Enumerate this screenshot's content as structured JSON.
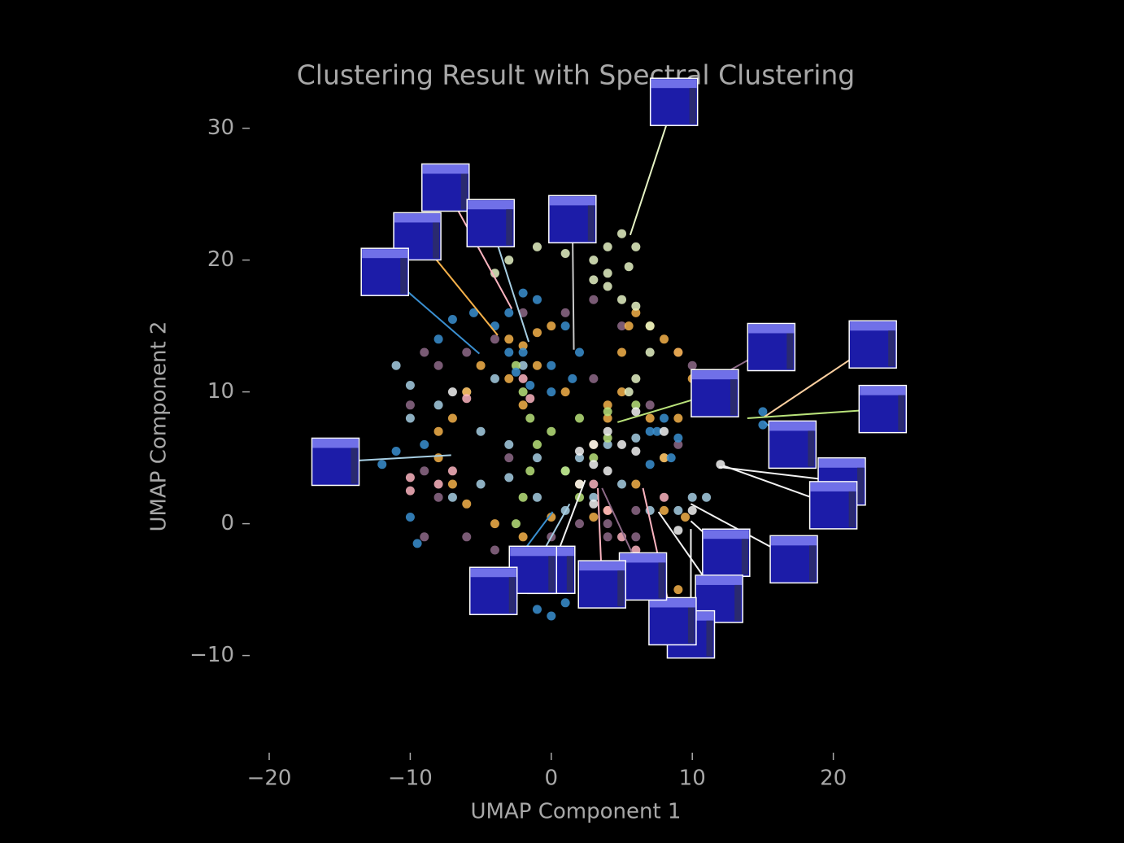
{
  "chart_data": {
    "type": "scatter",
    "title": "Clustering Result with Spectral Clustering",
    "xlabel": "UMAP Component 1",
    "ylabel": "UMAP Component 2",
    "xlim": [
      -21.5,
      28.5
    ],
    "ylim": [
      -17,
      33
    ],
    "xticks": [
      {
        "value": -20,
        "label": "−20"
      },
      {
        "value": -10,
        "label": "−10"
      },
      0,
      10,
      20
    ],
    "yticks": [
      {
        "value": -10,
        "label": "−10"
      },
      0,
      10,
      20,
      30
    ],
    "series": [
      {
        "color": "#8e6a88",
        "x": [
          -9,
          -8,
          -6,
          -4,
          -2,
          1,
          3,
          5,
          9,
          10,
          -9,
          -8,
          -6,
          -4,
          -2,
          0,
          2,
          4,
          6,
          -10,
          4,
          6,
          7,
          9,
          -9,
          3,
          -3
        ],
        "y": [
          13,
          12,
          13,
          14,
          16,
          16,
          17,
          15,
          13,
          12,
          4,
          2,
          -1,
          -2,
          -2,
          -1,
          0,
          0,
          1,
          9,
          -1,
          -1,
          9,
          6,
          -1,
          11,
          5
        ]
      },
      {
        "color": "#a6cee3",
        "x": [
          -10,
          -8,
          -6,
          -4,
          -2,
          -5,
          -3,
          -1,
          1,
          2,
          4,
          6,
          8,
          -7,
          -5,
          -3,
          -1,
          1,
          3,
          5,
          7,
          9,
          10,
          11,
          -11,
          -10
        ],
        "y": [
          8,
          9,
          10,
          11,
          12,
          7,
          6,
          5,
          4,
          5,
          6,
          6.5,
          5,
          2,
          3,
          3.5,
          2,
          1,
          2,
          3,
          1,
          1,
          2,
          2,
          12,
          10.5
        ]
      },
      {
        "color": "#f5b14a",
        "x": [
          -3,
          -2,
          -1,
          0,
          -1,
          -3,
          -5,
          -6,
          -7,
          -8,
          -8,
          -7,
          -6,
          -4,
          -2,
          0,
          2,
          3,
          4,
          5,
          5,
          5.5,
          6,
          7,
          8,
          9,
          10,
          9,
          8,
          6,
          4,
          3,
          -2,
          1,
          4,
          7,
          8,
          9.5,
          9
        ],
        "y": [
          14,
          13.5,
          14.5,
          15,
          12,
          11,
          12,
          10,
          8,
          7,
          5,
          3,
          1.5,
          0,
          -1,
          0.5,
          3,
          6,
          8,
          10,
          13,
          15,
          16,
          15,
          14,
          13,
          11,
          8,
          5,
          3,
          1,
          0.5,
          9,
          10,
          9,
          8,
          1,
          0.5,
          -5
        ]
      },
      {
        "color": "#b9e27a",
        "x": [
          -2.5,
          -2,
          -1.5,
          -1,
          -1.5,
          -2,
          -2.5,
          0,
          2,
          4,
          6,
          1,
          2,
          -2,
          3,
          4
        ],
        "y": [
          12,
          10,
          8,
          6,
          4,
          2,
          0,
          7,
          8,
          8.5,
          9,
          4,
          2,
          -3,
          5,
          6.5
        ]
      },
      {
        "color": "#e5f2c4",
        "x": [
          -4,
          -3,
          -1,
          1,
          3,
          4,
          5,
          6,
          5.5,
          4,
          3,
          4,
          5,
          6,
          7,
          7,
          6,
          5.5,
          -3,
          2.5
        ],
        "y": [
          19,
          20,
          21,
          20.5,
          20,
          21,
          22,
          21,
          19.5,
          19,
          18.5,
          18,
          17,
          16.5,
          15,
          13,
          11,
          10,
          21.5,
          22
        ]
      },
      {
        "color": "#fbb4c0",
        "x": [
          -2,
          -1.5,
          -7,
          -8,
          -10,
          -10,
          3,
          4,
          5,
          6,
          8,
          -6
        ],
        "y": [
          11,
          9.5,
          4,
          3,
          3.5,
          2.5,
          3,
          1,
          -1,
          -2,
          2,
          9.5
        ]
      },
      {
        "color": "#3a8fd0",
        "x": [
          -8,
          -7,
          -5.5,
          -4,
          -3,
          -2.5,
          -1.5,
          0,
          1.5,
          2,
          1,
          -1,
          -2,
          -3,
          -2,
          0,
          7,
          8,
          9,
          8.5,
          7,
          7.5,
          -9,
          -11,
          -12,
          -10,
          -9.5,
          -1,
          0,
          1,
          15,
          15
        ],
        "y": [
          14,
          15.5,
          16,
          15,
          13,
          11.5,
          10.5,
          10,
          11,
          13,
          15,
          17,
          17.5,
          16,
          13,
          12,
          7,
          8,
          6.5,
          5,
          4.5,
          7,
          6,
          5.5,
          4.5,
          0.5,
          -1.5,
          -6.5,
          -7,
          -6,
          8.5,
          7.5
        ]
      },
      {
        "color": "#f2f2f2",
        "x": [
          2,
          3,
          4,
          5,
          6,
          4,
          3,
          2,
          6,
          9,
          12,
          10,
          -7,
          8,
          3
        ],
        "y": [
          5.5,
          6,
          7,
          6,
          5.5,
          4,
          4.5,
          3,
          8.5,
          -0.5,
          4.5,
          1,
          10,
          7,
          1.5
        ]
      }
    ],
    "thumbnails": [
      {
        "x": 8.7,
        "y": 32.0,
        "tx": 5.6,
        "ty": 21.9,
        "color": "#e5f2c4"
      },
      {
        "x": -7.5,
        "y": 25.5,
        "tx": -2.8,
        "ty": 16.3,
        "color": "#fbb4c0"
      },
      {
        "x": -4.3,
        "y": 22.8,
        "tx": -1.6,
        "ty": 13.8,
        "color": "#a6cee3"
      },
      {
        "x": 1.5,
        "y": 23.1,
        "tx": 1.6,
        "ty": 13.2,
        "color": "#c8c8c8"
      },
      {
        "x": -9.5,
        "y": 21.8,
        "tx": -3.8,
        "ty": 14.3,
        "color": "#f5b14a"
      },
      {
        "x": -11.8,
        "y": 19.1,
        "tx": -5.1,
        "ty": 12.9,
        "color": "#3a8fd0"
      },
      {
        "x": -15.3,
        "y": 4.7,
        "tx": -7.1,
        "ty": 5.2,
        "color": "#a6cee3"
      },
      {
        "x": 15.6,
        "y": 13.4,
        "tx": 11.1,
        "ty": 10.7,
        "color": "#8e6a88"
      },
      {
        "x": 22.8,
        "y": 13.6,
        "tx": 15.1,
        "ty": 8.1,
        "color": "#fdd0a0"
      },
      {
        "x": 23.5,
        "y": 8.7,
        "tx": 13.9,
        "ty": 8.0,
        "color": "#b9e27a"
      },
      {
        "x": 11.6,
        "y": 9.9,
        "tx": 4.7,
        "ty": 7.7,
        "color": "#b9e27a"
      },
      {
        "x": 17.1,
        "y": 6.0,
        "tx": 15.1,
        "ty": 7.7,
        "color": "#3a8fd0"
      },
      {
        "x": 20.6,
        "y": 3.2,
        "tx": 11.9,
        "ty": 4.3,
        "color": "#f2f2f2"
      },
      {
        "x": 20.0,
        "y": 1.4,
        "tx": 12.2,
        "ty": 4.4,
        "color": "#f2f2f2"
      },
      {
        "x": 17.2,
        "y": -2.7,
        "tx": 9.9,
        "ty": 1.5,
        "color": "#f2f2f2"
      },
      {
        "x": 12.4,
        "y": -2.2,
        "tx": 9.9,
        "ty": 0.2,
        "color": "#f2f2f2"
      },
      {
        "x": 11.9,
        "y": -5.7,
        "tx": 7.6,
        "ty": 0.9,
        "color": "#f2f2f2"
      },
      {
        "x": 9.9,
        "y": -8.4,
        "tx": 9.9,
        "ty": -0.4,
        "color": "#f2f2f2"
      },
      {
        "x": 8.6,
        "y": -7.4,
        "tx": 6.5,
        "ty": 2.7,
        "color": "#fbb4c0"
      },
      {
        "x": 6.5,
        "y": -4.0,
        "tx": 3.6,
        "ty": 2.7,
        "color": "#8e6a88"
      },
      {
        "x": 3.6,
        "y": -4.6,
        "tx": 3.3,
        "ty": 2.7,
        "color": "#fbb4c0"
      },
      {
        "x": 0,
        "y": -3.5,
        "tx": 2.4,
        "ty": 3.3,
        "color": "#f2f2f2"
      },
      {
        "x": -1.3,
        "y": -3.5,
        "tx": 1.3,
        "ty": 1.5,
        "color": "#a6cee3"
      },
      {
        "x": -4.1,
        "y": -5.1,
        "tx": 0.1,
        "ty": 0.9,
        "color": "#3a8fd0"
      }
    ]
  }
}
